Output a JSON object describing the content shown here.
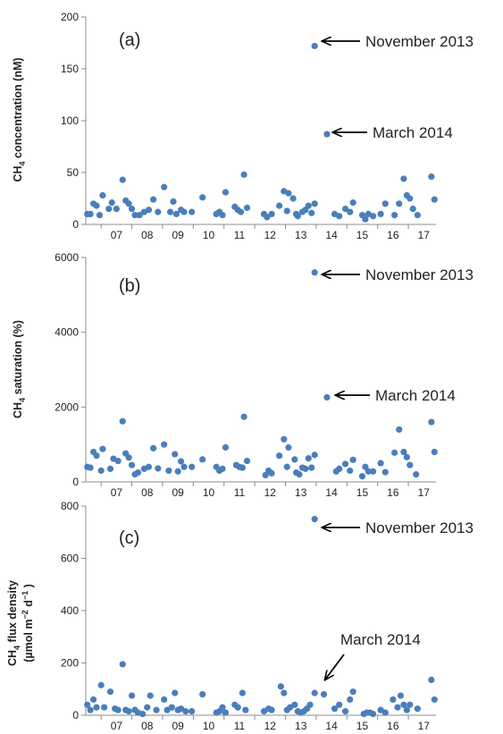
{
  "colors": {
    "marker": "#4a7ebb",
    "axis": "#8c8c8c",
    "text": "#222222",
    "arrow": "#000000"
  },
  "chart_data": [
    {
      "type": "scatter",
      "panel_label": "(a)",
      "ylabel": "CH4 concentration (nM)",
      "ylabel_parts": {
        "pre": "CH",
        "sub": "4",
        "post": " concentration (nM)"
      },
      "ylim": [
        0,
        200
      ],
      "yticks": [
        0,
        50,
        100,
        150,
        200
      ],
      "xlim": [
        6.5,
        17.9
      ],
      "x_ticks": [
        "07",
        "08",
        "09",
        "10",
        "11",
        "12",
        "13",
        "14",
        "15",
        "16",
        "17"
      ],
      "grid": false,
      "points": [
        [
          6.55,
          10
        ],
        [
          6.65,
          10
        ],
        [
          6.75,
          20
        ],
        [
          6.85,
          18
        ],
        [
          6.95,
          9
        ],
        [
          7.05,
          28
        ],
        [
          7.25,
          15
        ],
        [
          7.35,
          21
        ],
        [
          7.5,
          15
        ],
        [
          7.7,
          43
        ],
        [
          7.8,
          23
        ],
        [
          7.9,
          20
        ],
        [
          8.0,
          15
        ],
        [
          8.1,
          9
        ],
        [
          8.25,
          9
        ],
        [
          8.4,
          12
        ],
        [
          8.55,
          14
        ],
        [
          8.7,
          24
        ],
        [
          8.85,
          12
        ],
        [
          9.05,
          36
        ],
        [
          9.25,
          12
        ],
        [
          9.35,
          22
        ],
        [
          9.45,
          10
        ],
        [
          9.6,
          14
        ],
        [
          9.7,
          12
        ],
        [
          9.95,
          12
        ],
        [
          10.3,
          26
        ],
        [
          10.75,
          10
        ],
        [
          10.85,
          12
        ],
        [
          10.95,
          9
        ],
        [
          11.05,
          31
        ],
        [
          11.35,
          17
        ],
        [
          11.45,
          14
        ],
        [
          11.55,
          12
        ],
        [
          11.65,
          48
        ],
        [
          11.75,
          16
        ],
        [
          12.3,
          10
        ],
        [
          12.4,
          7
        ],
        [
          12.55,
          10
        ],
        [
          12.8,
          18
        ],
        [
          12.95,
          32
        ],
        [
          13.05,
          13
        ],
        [
          13.1,
          30
        ],
        [
          13.25,
          25
        ],
        [
          13.35,
          10
        ],
        [
          13.4,
          8
        ],
        [
          13.55,
          12
        ],
        [
          13.65,
          14
        ],
        [
          13.75,
          18
        ],
        [
          13.85,
          11
        ],
        [
          13.95,
          20
        ],
        [
          13.95,
          172
        ],
        [
          14.35,
          87
        ],
        [
          14.6,
          10
        ],
        [
          14.75,
          8
        ],
        [
          14.95,
          15
        ],
        [
          15.1,
          12
        ],
        [
          15.2,
          21
        ],
        [
          15.5,
          9
        ],
        [
          15.6,
          5
        ],
        [
          15.7,
          10
        ],
        [
          15.85,
          8
        ],
        [
          16.1,
          10
        ],
        [
          16.25,
          20
        ],
        [
          16.55,
          9
        ],
        [
          16.7,
          20
        ],
        [
          16.85,
          44
        ],
        [
          16.95,
          28
        ],
        [
          17.05,
          25
        ],
        [
          17.15,
          15
        ],
        [
          17.3,
          9
        ],
        [
          17.75,
          46
        ],
        [
          17.85,
          24
        ]
      ],
      "annotations": [
        {
          "text": "November 2013",
          "x": 13.95,
          "y": 172
        },
        {
          "text": "March 2014",
          "x": 14.35,
          "y": 87
        }
      ]
    },
    {
      "type": "scatter",
      "panel_label": "(b)",
      "ylabel": "CH4 saturation (%)",
      "ylabel_parts": {
        "pre": "CH",
        "sub": "4",
        "post": " saturation (%)"
      },
      "ylim": [
        0,
        6000
      ],
      "yticks": [
        0,
        2000,
        4000,
        6000
      ],
      "xlim": [
        6.5,
        17.9
      ],
      "x_ticks": [
        "07",
        "08",
        "09",
        "10",
        "11",
        "12",
        "13",
        "14",
        "15",
        "16",
        "17"
      ],
      "grid": false,
      "points": [
        [
          6.55,
          400
        ],
        [
          6.65,
          380
        ],
        [
          6.75,
          800
        ],
        [
          6.85,
          700
        ],
        [
          7.0,
          300
        ],
        [
          7.05,
          880
        ],
        [
          7.3,
          350
        ],
        [
          7.4,
          620
        ],
        [
          7.55,
          560
        ],
        [
          7.7,
          1620
        ],
        [
          7.8,
          760
        ],
        [
          7.9,
          650
        ],
        [
          8.0,
          450
        ],
        [
          8.1,
          200
        ],
        [
          8.2,
          250
        ],
        [
          8.4,
          350
        ],
        [
          8.55,
          400
        ],
        [
          8.7,
          900
        ],
        [
          8.85,
          360
        ],
        [
          9.05,
          1000
        ],
        [
          9.2,
          300
        ],
        [
          9.4,
          740
        ],
        [
          9.5,
          280
        ],
        [
          9.6,
          550
        ],
        [
          9.7,
          400
        ],
        [
          9.95,
          400
        ],
        [
          10.3,
          600
        ],
        [
          10.75,
          400
        ],
        [
          10.85,
          300
        ],
        [
          10.95,
          350
        ],
        [
          11.05,
          920
        ],
        [
          11.4,
          450
        ],
        [
          11.5,
          400
        ],
        [
          11.6,
          380
        ],
        [
          11.65,
          1740
        ],
        [
          11.75,
          560
        ],
        [
          12.35,
          180
        ],
        [
          12.45,
          300
        ],
        [
          12.55,
          230
        ],
        [
          12.8,
          700
        ],
        [
          12.95,
          1140
        ],
        [
          13.05,
          400
        ],
        [
          13.1,
          920
        ],
        [
          13.3,
          600
        ],
        [
          13.35,
          250
        ],
        [
          13.45,
          200
        ],
        [
          13.55,
          380
        ],
        [
          13.65,
          350
        ],
        [
          13.75,
          630
        ],
        [
          13.85,
          380
        ],
        [
          13.95,
          720
        ],
        [
          13.95,
          5600
        ],
        [
          14.35,
          2260
        ],
        [
          14.65,
          280
        ],
        [
          14.75,
          350
        ],
        [
          14.95,
          480
        ],
        [
          15.1,
          300
        ],
        [
          15.2,
          590
        ],
        [
          15.5,
          150
        ],
        [
          15.6,
          400
        ],
        [
          15.7,
          280
        ],
        [
          15.85,
          280
        ],
        [
          16.1,
          500
        ],
        [
          16.25,
          260
        ],
        [
          16.55,
          780
        ],
        [
          16.7,
          1400
        ],
        [
          16.85,
          800
        ],
        [
          16.95,
          660
        ],
        [
          17.05,
          450
        ],
        [
          17.25,
          200
        ],
        [
          17.75,
          1600
        ],
        [
          17.85,
          800
        ]
      ],
      "annotations": [
        {
          "text": "November 2013",
          "x": 13.95,
          "y": 5600
        },
        {
          "text": "March 2014",
          "x": 14.35,
          "y": 2260
        }
      ]
    },
    {
      "type": "scatter",
      "panel_label": "(c)",
      "ylabel": "CH4 flux density (µmol m−2 d−1 )",
      "ylabel_parts": {
        "pre": "CH",
        "sub": "4",
        "post": " flux density",
        "line2": "(µmol m",
        "sup1": "−2",
        "mid": " d",
        "sup2": "−1",
        "end": " )"
      },
      "ylim": [
        0,
        800
      ],
      "yticks": [
        0,
        200,
        400,
        600,
        800
      ],
      "xlim": [
        6.5,
        17.9
      ],
      "x_ticks": [
        "07",
        "08",
        "09",
        "10",
        "11",
        "12",
        "13",
        "14",
        "15",
        "16",
        "17"
      ],
      "grid": false,
      "points": [
        [
          6.55,
          40
        ],
        [
          6.65,
          20
        ],
        [
          6.75,
          60
        ],
        [
          6.85,
          30
        ],
        [
          7.0,
          115
        ],
        [
          7.1,
          30
        ],
        [
          7.3,
          90
        ],
        [
          7.45,
          25
        ],
        [
          7.55,
          20
        ],
        [
          7.7,
          195
        ],
        [
          7.8,
          20
        ],
        [
          7.9,
          15
        ],
        [
          8.0,
          75
        ],
        [
          8.1,
          20
        ],
        [
          8.2,
          10
        ],
        [
          8.35,
          5
        ],
        [
          8.5,
          30
        ],
        [
          8.6,
          75
        ],
        [
          8.8,
          20
        ],
        [
          9.05,
          60
        ],
        [
          9.15,
          20
        ],
        [
          9.3,
          30
        ],
        [
          9.4,
          85
        ],
        [
          9.5,
          20
        ],
        [
          9.6,
          25
        ],
        [
          9.75,
          15
        ],
        [
          9.95,
          15
        ],
        [
          10.3,
          80
        ],
        [
          10.75,
          10
        ],
        [
          10.85,
          15
        ],
        [
          10.95,
          30
        ],
        [
          11.05,
          10
        ],
        [
          11.35,
          40
        ],
        [
          11.45,
          30
        ],
        [
          11.6,
          85
        ],
        [
          11.7,
          20
        ],
        [
          12.3,
          15
        ],
        [
          12.45,
          25
        ],
        [
          12.55,
          20
        ],
        [
          12.85,
          110
        ],
        [
          12.95,
          85
        ],
        [
          13.05,
          20
        ],
        [
          13.15,
          30
        ],
        [
          13.3,
          40
        ],
        [
          13.4,
          15
        ],
        [
          13.5,
          10
        ],
        [
          13.6,
          15
        ],
        [
          13.7,
          25
        ],
        [
          13.8,
          40
        ],
        [
          13.95,
          85
        ],
        [
          13.95,
          750
        ],
        [
          14.25,
          80
        ],
        [
          14.6,
          25
        ],
        [
          14.75,
          40
        ],
        [
          14.95,
          15
        ],
        [
          15.1,
          60
        ],
        [
          15.2,
          90
        ],
        [
          15.55,
          5
        ],
        [
          15.65,
          10
        ],
        [
          15.75,
          10
        ],
        [
          15.85,
          5
        ],
        [
          16.1,
          20
        ],
        [
          16.25,
          10
        ],
        [
          16.5,
          60
        ],
        [
          16.65,
          30
        ],
        [
          16.75,
          75
        ],
        [
          16.85,
          40
        ],
        [
          16.95,
          20
        ],
        [
          17.05,
          40
        ],
        [
          17.3,
          25
        ],
        [
          17.75,
          135
        ],
        [
          17.85,
          60
        ]
      ],
      "annotations": [
        {
          "text": "November 2013",
          "x": 13.95,
          "y": 750
        },
        {
          "text": "March 2014",
          "x": 14.25,
          "y": 80
        }
      ]
    }
  ]
}
